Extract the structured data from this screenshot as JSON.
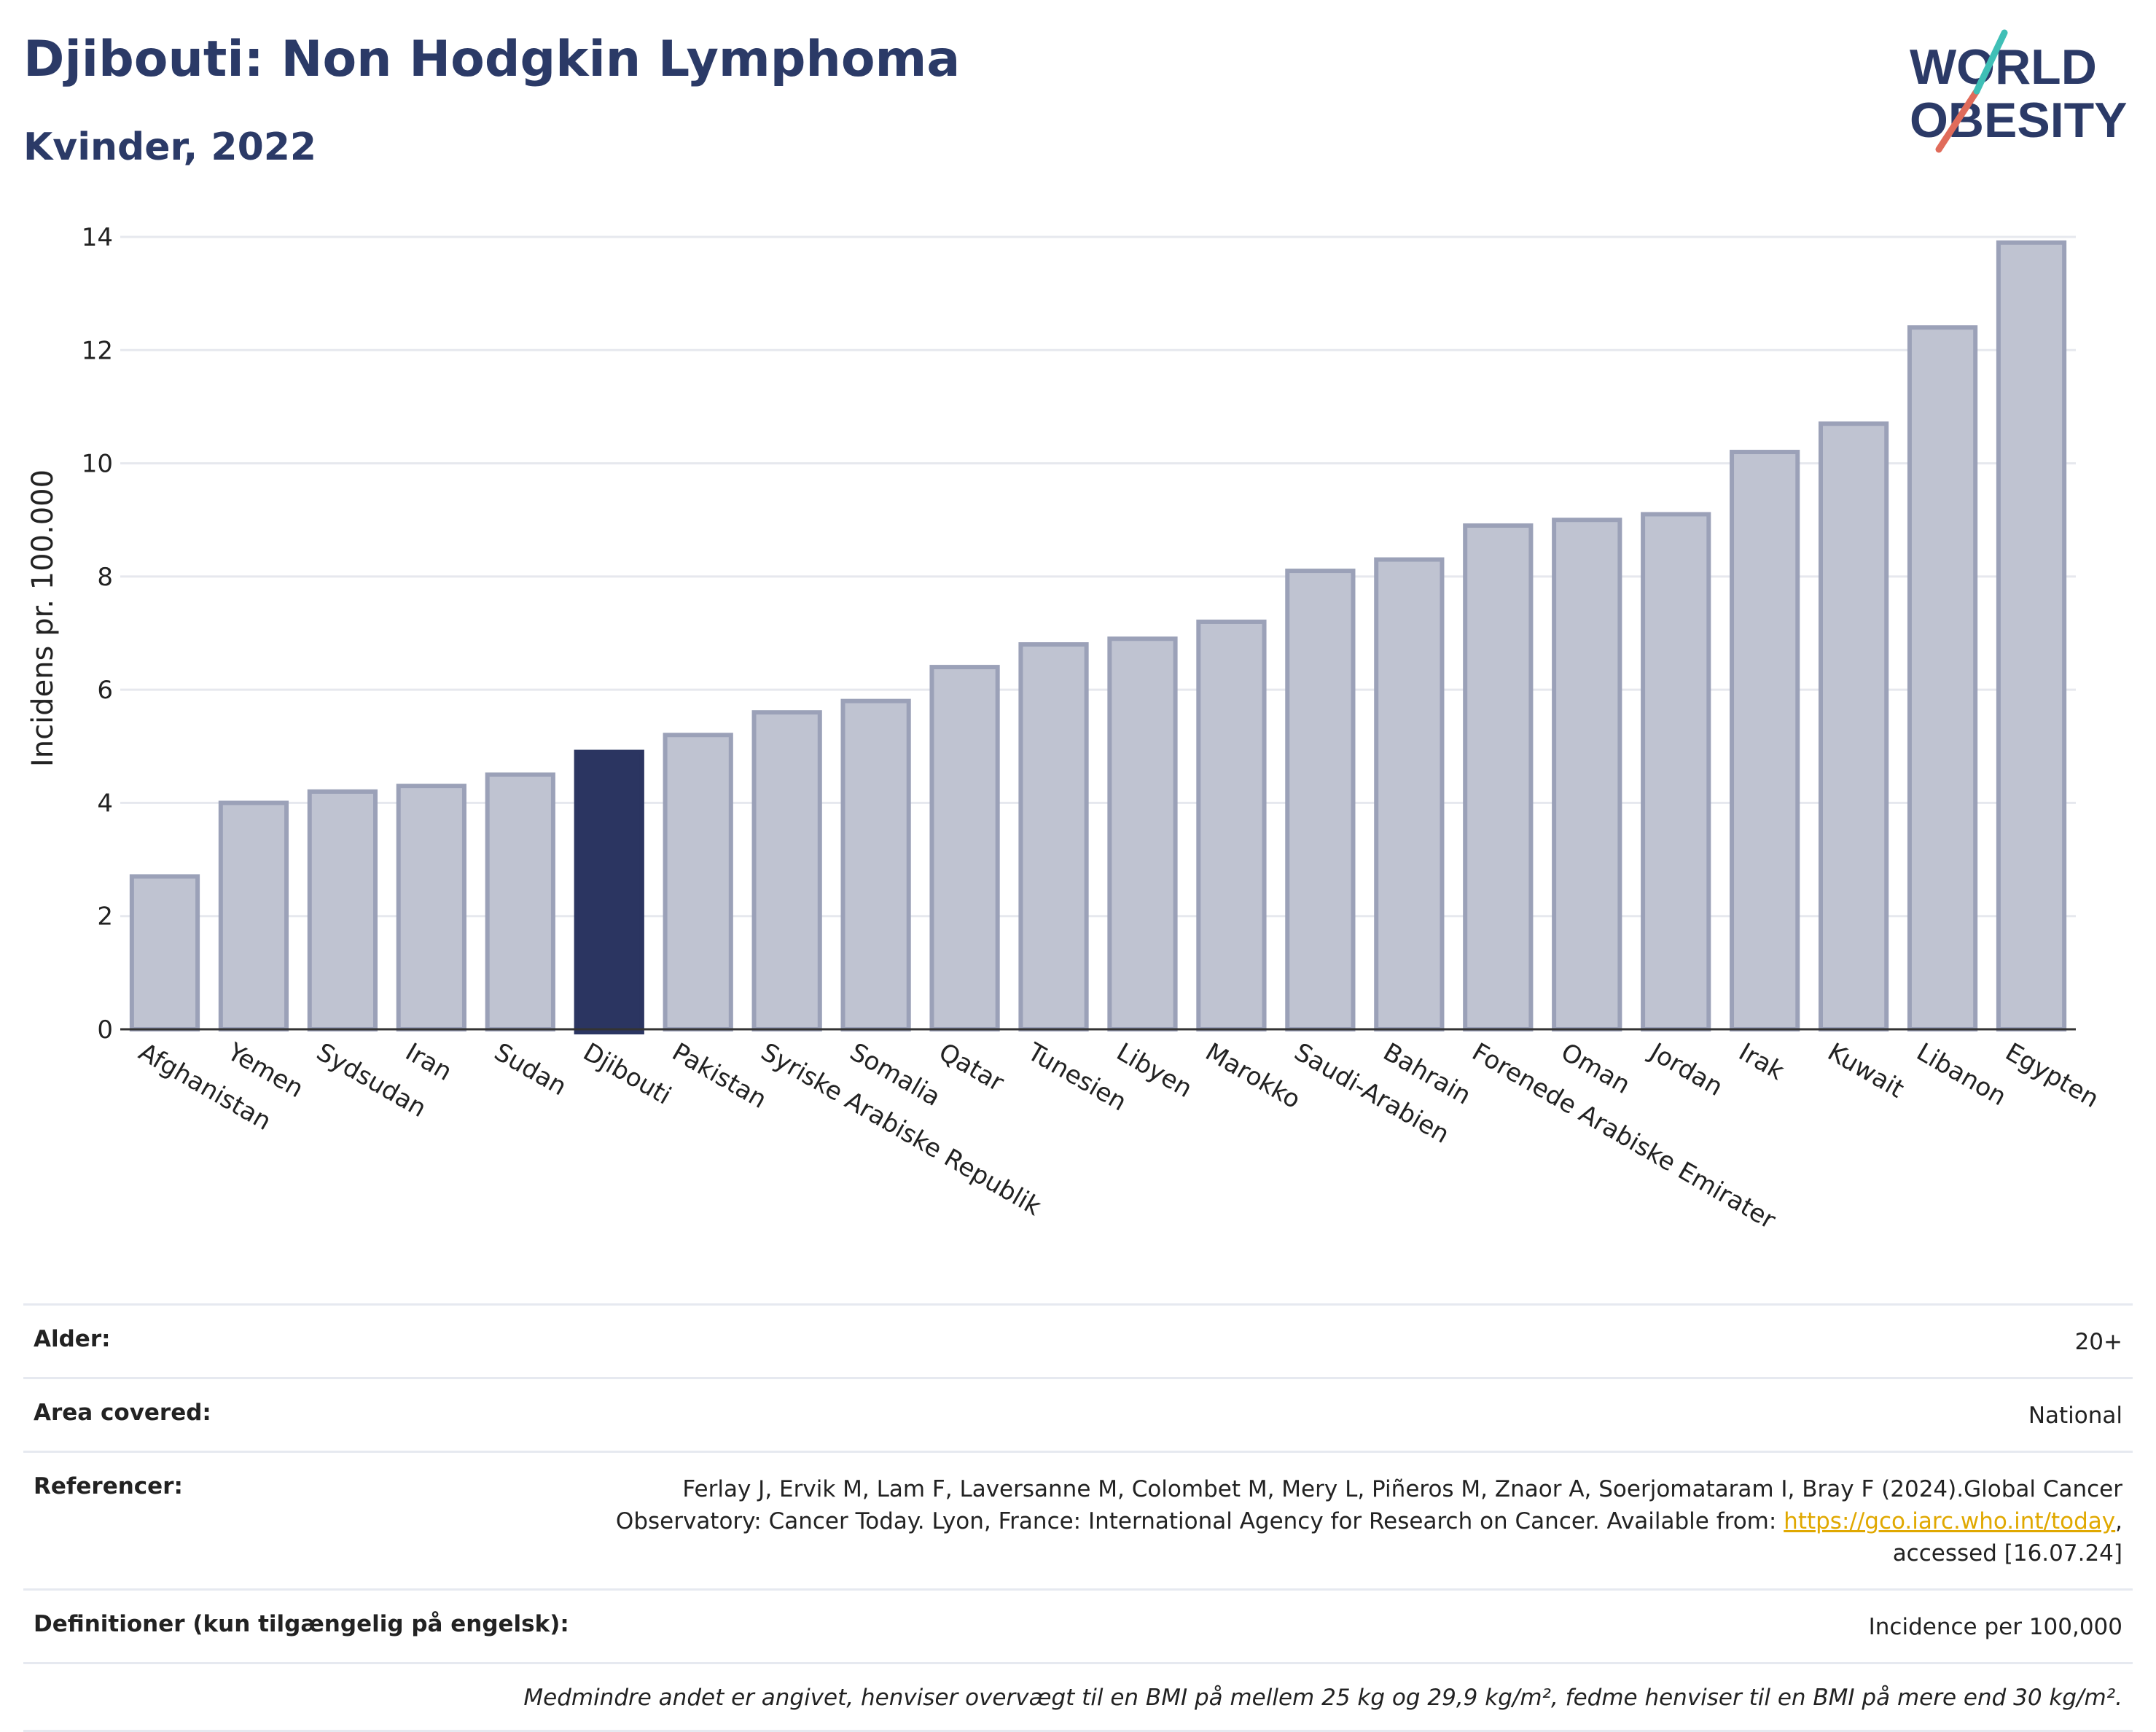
{
  "header": {
    "title": "Djibouti: Non Hodgkin Lymphoma",
    "subtitle": "Kvinder, 2022"
  },
  "logo": {
    "line1": "WORLD",
    "line2": "OBESITY"
  },
  "colors": {
    "bar": "#bfc3d1",
    "bar_border": "#9ba1b8",
    "highlight": "#2b3561",
    "grid": "#e6e8ee",
    "text": "#2b3a67",
    "link": "#e0a800"
  },
  "chart_data": {
    "type": "bar",
    "ylabel": "Incidens pr. 100.000",
    "ylim": [
      0,
      14
    ],
    "yticks": [
      0,
      2,
      4,
      6,
      8,
      10,
      12,
      14
    ],
    "grid": true,
    "highlight": "Djibouti",
    "categories": [
      "Afghanistan",
      "Yemen",
      "Sydsudan",
      "Iran",
      "Sudan",
      "Djibouti",
      "Pakistan",
      "Syriske Arabiske Republik",
      "Somalia",
      "Qatar",
      "Tunesien",
      "Libyen",
      "Marokko",
      "Saudi-Arabien",
      "Bahrain",
      "Forenede Arabiske Emirater",
      "Oman",
      "Jordan",
      "Irak",
      "Kuwait",
      "Libanon",
      "Egypten"
    ],
    "values": [
      2.7,
      4.0,
      4.2,
      4.3,
      4.5,
      4.9,
      5.2,
      5.6,
      5.8,
      6.4,
      6.8,
      6.9,
      7.2,
      8.1,
      8.3,
      8.9,
      9.0,
      9.1,
      10.2,
      10.7,
      12.4,
      13.9
    ]
  },
  "meta": [
    {
      "key": "Alder:",
      "value": "20+"
    },
    {
      "key": "Area covered:",
      "value": "National"
    },
    {
      "key": "Referencer:",
      "value_pre": "Ferlay J, Ervik M, Lam F, Laversanne M, Colombet M, Mery L, Piñeros M, Znaor A, Soerjomataram I, Bray F (2024).Global Cancer Observatory: Cancer Today. Lyon, France: International Agency for Research on Cancer. Available from: ",
      "link": "https://gco.iarc.who.int/today",
      "value_post": ", accessed [16.07.24]"
    },
    {
      "key": "Definitioner (kun tilgængelig på engelsk):",
      "value": "Incidence per 100,000"
    }
  ],
  "note": "Medmindre andet er angivet, henviser overvægt til en BMI på mellem 25 kg og 29,9 kg/m², fedme henviser til en BMI på mere end 30 kg/m²."
}
